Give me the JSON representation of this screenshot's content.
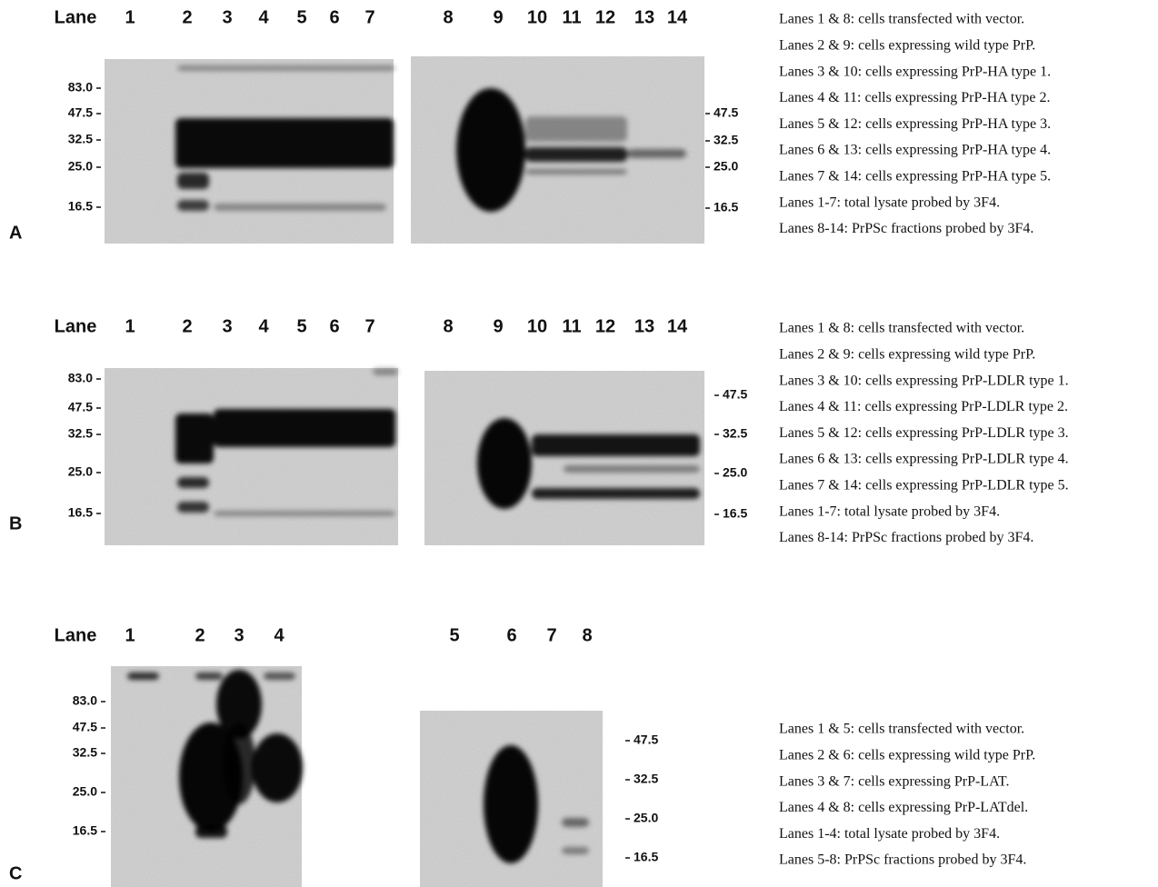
{
  "panels": [
    {
      "label": "A",
      "lane_header": "Lane",
      "lanes_left": [
        "1",
        "2",
        "3",
        "4",
        "5",
        "6",
        "7"
      ],
      "lanes_right": [
        "8",
        "9",
        "10",
        "11",
        "12",
        "13",
        "14"
      ],
      "markers_left": [
        "83.0",
        "47.5",
        "32.5",
        "25.0",
        "16.5"
      ],
      "markers_right": [
        "47.5",
        "32.5",
        "25.0",
        "16.5"
      ],
      "legend": [
        "Lanes 1 & 8: cells transfected with vector.",
        "Lanes 2 & 9: cells expressing wild type PrP.",
        "Lanes 3 & 10: cells expressing PrP-HA type 1.",
        "Lanes 4 & 11: cells expressing PrP-HA type 2.",
        "Lanes 5 & 12: cells expressing PrP-HA type 3.",
        "Lanes 6 & 13: cells expressing PrP-HA type 4.",
        "Lanes 7 & 14: cells expressing PrP-HA type 5.",
        "Lanes 1-7: total lysate probed by 3F4.",
        "Lanes 8-14: PrPSc fractions probed by 3F4."
      ]
    },
    {
      "label": "B",
      "lane_header": "Lane",
      "lanes_left": [
        "1",
        "2",
        "3",
        "4",
        "5",
        "6",
        "7"
      ],
      "lanes_right": [
        "8",
        "9",
        "10",
        "11",
        "12",
        "13",
        "14"
      ],
      "markers_left": [
        "83.0",
        "47.5",
        "32.5",
        "25.0",
        "16.5"
      ],
      "markers_right": [
        "47.5",
        "32.5",
        "25.0",
        "16.5"
      ],
      "legend": [
        "Lanes 1 & 8: cells transfected with vector.",
        "Lanes 2 & 9: cells expressing wild type PrP.",
        "Lanes 3 & 10: cells expressing PrP-LDLR type 1.",
        "Lanes 4 & 11: cells expressing PrP-LDLR type 2.",
        "Lanes 5 & 12: cells expressing PrP-LDLR type 3.",
        "Lanes 6 & 13: cells expressing PrP-LDLR type 4.",
        "Lanes 7 & 14: cells expressing PrP-LDLR type 5.",
        "Lanes 1-7: total lysate probed by 3F4.",
        "Lanes 8-14: PrPSc fractions probed by 3F4."
      ]
    },
    {
      "label": "C",
      "lane_header": "Lane",
      "lanes_left": [
        "1",
        "2",
        "3",
        "4"
      ],
      "lanes_right": [
        "5",
        "6",
        "7",
        "8"
      ],
      "markers_left": [
        "83.0",
        "47.5",
        "32.5",
        "25.0",
        "16.5"
      ],
      "markers_right": [
        "47.5",
        "32.5",
        "25.0",
        "16.5"
      ],
      "legend": [
        "Lanes 1 & 5: cells transfected with vector.",
        "Lanes 2 & 6: cells expressing wild type PrP.",
        "Lanes 3 & 7: cells expressing PrP-LAT.",
        "Lanes 4 & 8: cells expressing PrP-LATdel.",
        "Lanes 1-4: total lysate probed by 3F4.",
        "Lanes 5-8: PrPSc fractions probed by 3F4."
      ]
    }
  ]
}
